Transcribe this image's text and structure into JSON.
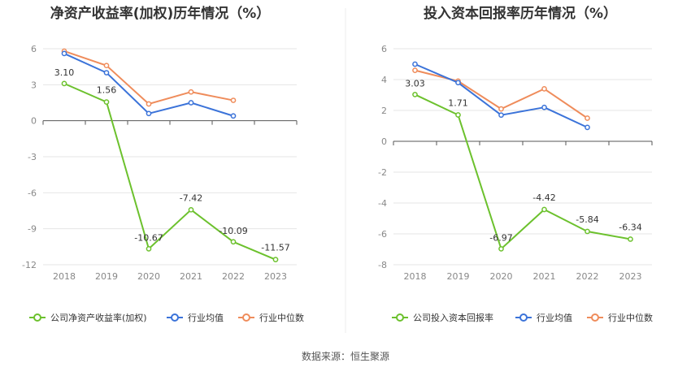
{
  "source_label": "数据来源：恒生聚源",
  "colors": {
    "company": "#6cc12d",
    "industry_avg": "#3b73d9",
    "industry_median": "#ef8c5b",
    "grid": "#e6e6e6",
    "axis": "#555555",
    "divider": "#eeeeee"
  },
  "chart_data": [
    {
      "type": "line",
      "title": "净资产收益率(加权)历年情况（%）",
      "categories": [
        "2018",
        "2019",
        "2020",
        "2021",
        "2022",
        "2023"
      ],
      "ylim": [
        -12,
        6
      ],
      "yticks": [
        6,
        3,
        0,
        -3,
        -6,
        -9,
        -12
      ],
      "grid": true,
      "legend_position": "bottom",
      "series": [
        {
          "name": "公司净资产收益率(加权)",
          "key": "company",
          "values": [
            3.1,
            1.56,
            -10.67,
            -7.42,
            -10.09,
            -11.57
          ],
          "labels": [
            "3.10",
            "1.56",
            "-10.67",
            "-7.42",
            "-10.09",
            "-11.57"
          ]
        },
        {
          "name": "行业均值",
          "key": "industry_avg",
          "values": [
            5.6,
            4.0,
            0.6,
            1.5,
            0.4,
            null
          ]
        },
        {
          "name": "行业中位数",
          "key": "industry_median",
          "values": [
            5.8,
            4.6,
            1.4,
            2.4,
            1.7,
            null
          ]
        }
      ]
    },
    {
      "type": "line",
      "title": "投入资本回报率历年情况（%）",
      "categories": [
        "2018",
        "2019",
        "2020",
        "2021",
        "2022",
        "2023"
      ],
      "ylim": [
        -8,
        6
      ],
      "yticks": [
        6,
        4,
        2,
        0,
        -2,
        -4,
        -6,
        -8
      ],
      "grid": true,
      "legend_position": "bottom",
      "series": [
        {
          "name": "公司投入资本回报率",
          "key": "company",
          "values": [
            3.03,
            1.71,
            -6.97,
            -4.42,
            -5.84,
            -6.34
          ],
          "labels": [
            "3.03",
            "1.71",
            "-6.97",
            "-4.42",
            "-5.84",
            "-6.34"
          ]
        },
        {
          "name": "行业均值",
          "key": "industry_avg",
          "values": [
            5.0,
            3.8,
            1.7,
            2.2,
            0.9,
            null
          ]
        },
        {
          "name": "行业中位数",
          "key": "industry_median",
          "values": [
            4.6,
            3.9,
            2.1,
            3.4,
            1.5,
            null
          ]
        }
      ]
    }
  ]
}
